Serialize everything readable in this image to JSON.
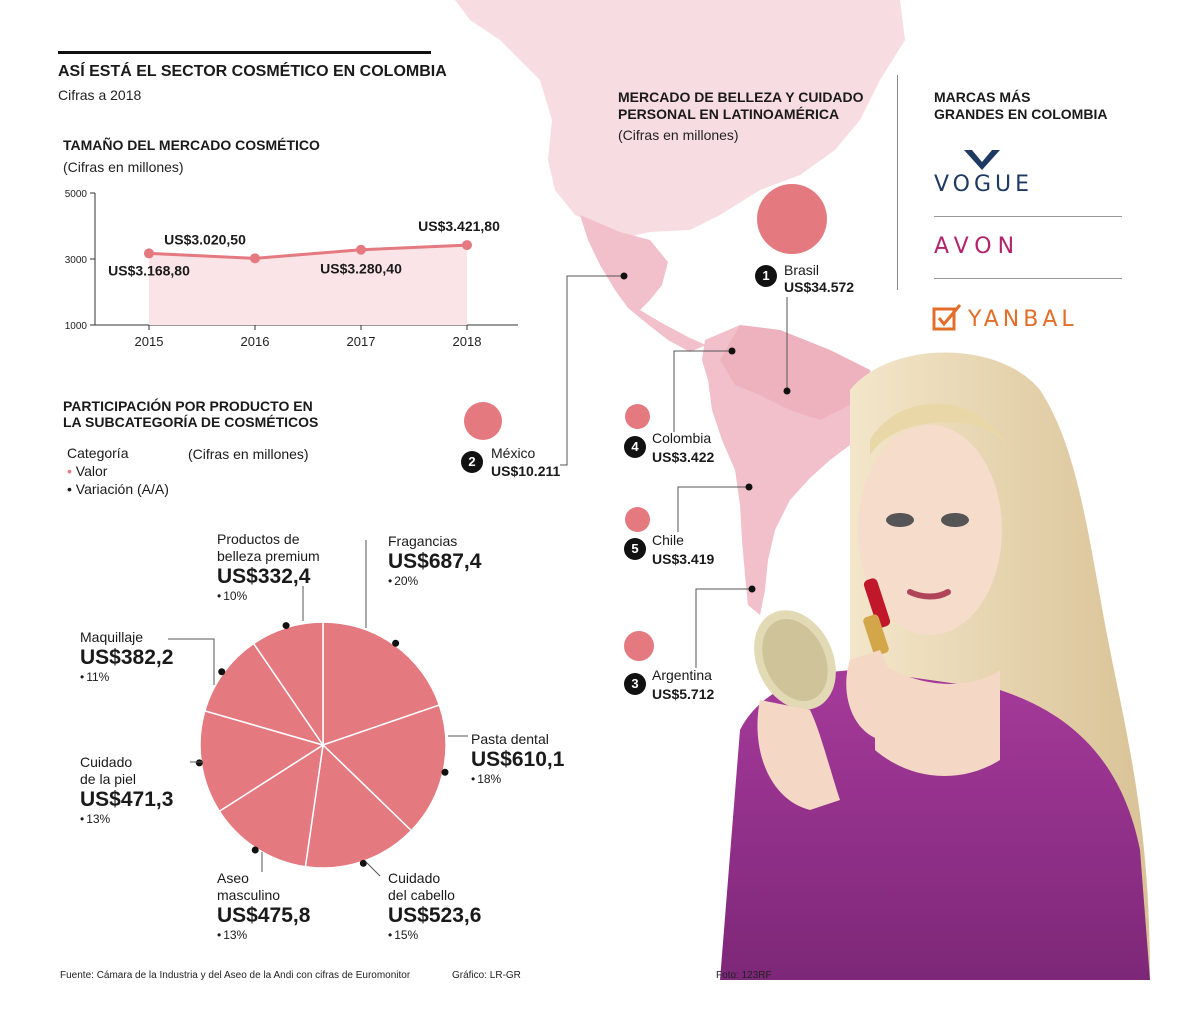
{
  "header": {
    "title": "ASÍ ESTÁ EL SECTOR COSMÉTICO EN COLOMBIA",
    "subtitle": "Cifras a 2018"
  },
  "market_size": {
    "title": "TAMAÑO DEL MERCADO COSMÉTICO",
    "unit": "(Cifras en millones)"
  },
  "products": {
    "title_line1": "PARTICIPACIÓN POR PRODUCTO EN",
    "title_line2": "LA SUBCATEGORÍA DE COSMÉTICOS",
    "legend_title": "Categoría",
    "legend_value": "Valor",
    "legend_variation": "Variación (A/A)",
    "unit": "(Cifras en millones)"
  },
  "latam": {
    "title_line1": "MERCADO DE BELLEZA Y CUIDADO",
    "title_line2": "PERSONAL EN LATINOAMÉRICA",
    "unit": "(Cifras en millones)",
    "markets": [
      {
        "rank": "1",
        "country": "Brasil",
        "value": "US$34.572",
        "amount": 34572
      },
      {
        "rank": "2",
        "country": "México",
        "value": "US$10.211",
        "amount": 10211
      },
      {
        "rank": "3",
        "country": "Argentina",
        "value": "US$5.712",
        "amount": 5712
      },
      {
        "rank": "4",
        "country": "Colombia",
        "value": "US$3.422",
        "amount": 3422
      },
      {
        "rank": "5",
        "country": "Chile",
        "value": "US$3.419",
        "amount": 3419
      }
    ]
  },
  "brands": {
    "title_line1": "MARCAS MÁS",
    "title_line2": "GRANDES EN COLOMBIA",
    "items": [
      "VOGUE",
      "AVON",
      "YANBAL"
    ]
  },
  "footer": {
    "source": "Fuente: Cámara de la Industria y del Aseo de la Andi con cifras de Euromonitor",
    "graphic": "Gráfico: LR-GR",
    "photo": "Foto: 123RF"
  },
  "colors": {
    "accent": "#e57980",
    "map": "#f7dce1",
    "map_strong": "#f2c0ca",
    "area": "#fbe4e7"
  },
  "chart_data": [
    {
      "type": "line",
      "title": "TAMAÑO DEL MERCADO COSMÉTICO",
      "ylabel": "Cifras en millones",
      "x": [
        "2015",
        "2016",
        "2017",
        "2018"
      ],
      "values": [
        3168.8,
        3020.5,
        3280.4,
        3421.8
      ],
      "data_labels": [
        "US$3.168,80",
        "US$3.020,50",
        "US$3.280,40",
        "US$3.421,80"
      ],
      "ylim": [
        1000,
        5000
      ],
      "yticks": [
        "5000",
        "3000",
        "1000"
      ]
    },
    {
      "type": "pie",
      "title": "PARTICIPACIÓN POR PRODUCTO EN LA SUBCATEGORÍA DE COSMÉTICOS",
      "slices": [
        {
          "label_lines": [
            "Fragancias"
          ],
          "value": 687.4,
          "value_label": "US$687,4",
          "variation": "20%"
        },
        {
          "label_lines": [
            "Pasta dental"
          ],
          "value": 610.1,
          "value_label": "US$610,1",
          "variation": "18%"
        },
        {
          "label_lines": [
            "Cuidado",
            "del cabello"
          ],
          "value": 523.6,
          "value_label": "US$523,6",
          "variation": "15%"
        },
        {
          "label_lines": [
            "Aseo",
            "masculino"
          ],
          "value": 475.8,
          "value_label": "US$475,8",
          "variation": "13%"
        },
        {
          "label_lines": [
            "Cuidado",
            "de la piel"
          ],
          "value": 471.3,
          "value_label": "US$471,3",
          "variation": "13%"
        },
        {
          "label_lines": [
            "Maquillaje"
          ],
          "value": 382.2,
          "value_label": "US$382,2",
          "variation": "11%"
        },
        {
          "label_lines": [
            "Productos de",
            "belleza premium"
          ],
          "value": 332.4,
          "value_label": "US$332,4",
          "variation": "10%"
        }
      ]
    }
  ]
}
